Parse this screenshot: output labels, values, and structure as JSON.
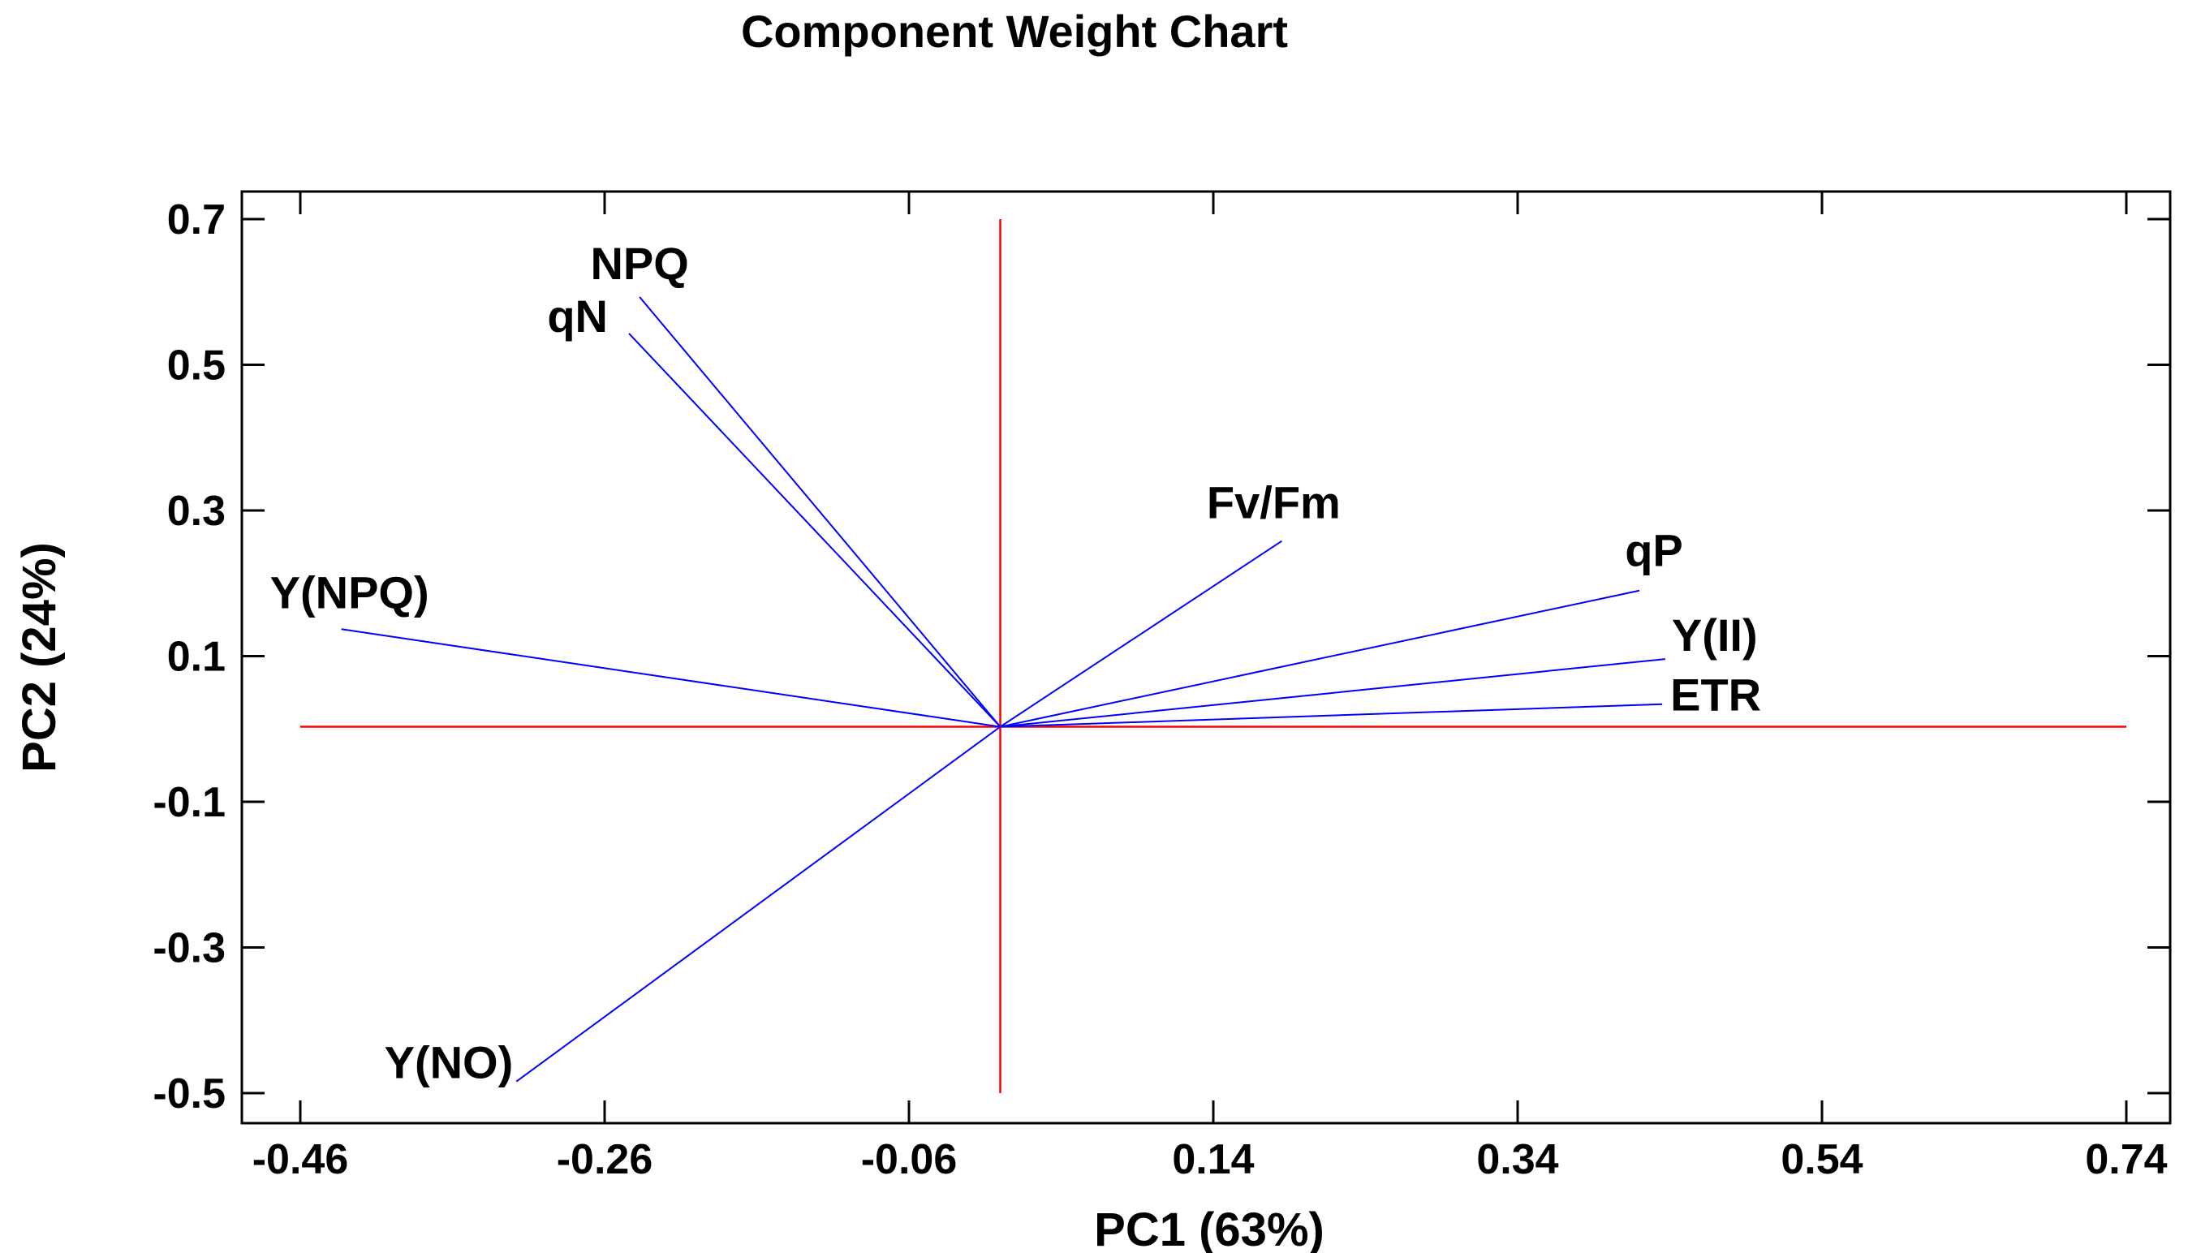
{
  "chart_data": {
    "type": "biplot",
    "title": "Component Weight Chart",
    "xlabel": "PC1 (63%)",
    "ylabel": "PC2 (24%)",
    "xlim": [
      -0.48,
      0.78
    ],
    "ylim": [
      -0.53,
      0.74
    ],
    "xticks": [
      -0.46,
      -0.26,
      -0.06,
      0.14,
      0.34,
      0.54,
      0.74
    ],
    "xtick_labels": [
      "-0.46",
      "-0.26",
      "-0.06",
      "0.14",
      "0.34",
      "0.54",
      "0.74"
    ],
    "yticks": [
      0.7,
      0.5,
      0.3,
      0.1,
      -0.1,
      -0.3,
      -0.5
    ],
    "ytick_labels": [
      "0.7",
      "0.5",
      "0.3",
      "0.1",
      "-0.1",
      "-0.3",
      "-0.5"
    ],
    "reference_lines": {
      "color": "#ff0000",
      "horizontal": {
        "y": 0.003,
        "x_from": -0.46,
        "x_to": 0.74
      },
      "vertical": {
        "x": 0.0,
        "y_from": -0.5,
        "y_to": 0.7
      }
    },
    "vector_color": "#0000ff",
    "origin": [
      0.0,
      0.003
    ],
    "vectors": [
      {
        "name": "NPQ",
        "x": -0.237,
        "y": 0.593
      },
      {
        "name": "qN",
        "x": -0.244,
        "y": 0.543
      },
      {
        "name": "Fv/Fm",
        "x": 0.185,
        "y": 0.258
      },
      {
        "name": "qP",
        "x": 0.42,
        "y": 0.19
      },
      {
        "name": "Y(II)",
        "x": 0.437,
        "y": 0.096
      },
      {
        "name": "ETR",
        "x": 0.435,
        "y": 0.034
      },
      {
        "name": "Y(NPQ)",
        "x": -0.433,
        "y": 0.137
      },
      {
        "name": "Y(NO)",
        "x": -0.318,
        "y": -0.484
      }
    ]
  }
}
